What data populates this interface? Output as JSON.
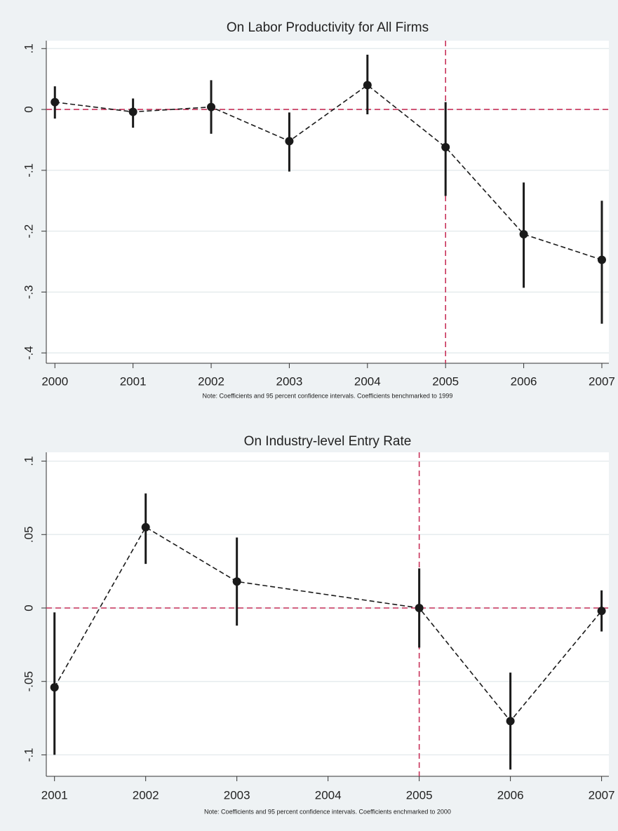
{
  "chart_data": [
    {
      "type": "line",
      "title": "On Labor Productivity for All Firms",
      "note": "Note: Coefficients and 95 percent confidence intervals. Coefficients benchmarked to 1999",
      "x": [
        2000,
        2001,
        2002,
        2003,
        2004,
        2005,
        2006,
        2007
      ],
      "values": [
        0.012,
        -0.004,
        0.004,
        -0.052,
        0.04,
        -0.062,
        -0.205,
        -0.247
      ],
      "ci_low": [
        -0.015,
        -0.03,
        -0.04,
        -0.102,
        -0.008,
        -0.142,
        -0.293,
        -0.352
      ],
      "ci_high": [
        0.038,
        0.018,
        0.048,
        -0.005,
        0.09,
        0.012,
        -0.12,
        -0.15
      ],
      "color": "#1a1a1a",
      "ref_color": "#c8325a",
      "ref_y": 0,
      "ref_x": 2005,
      "xlim": [
        1999.89,
        2007.09
      ],
      "xticks": [
        2000,
        2001,
        2002,
        2003,
        2004,
        2005,
        2006,
        2007
      ],
      "ylim": [
        -0.417,
        0.113
      ],
      "yticks": [
        {
          "value": 0.1,
          "label": ".1"
        },
        0,
        {
          "value": -0.1,
          "label": "-.1"
        },
        {
          "value": -0.2,
          "label": "-.2"
        },
        {
          "value": -0.3,
          "label": "-.3"
        },
        {
          "value": -0.4,
          "label": "-.4"
        }
      ],
      "grid": true
    },
    {
      "type": "line",
      "title": "On Industry-level Entry Rate",
      "note": "Note: Coefficients and 95 percent confidence intervals. Coefficients enchmarked to 2000",
      "x": [
        2001,
        2002,
        2003,
        2005,
        2006,
        2007
      ],
      "values": [
        -0.054,
        0.055,
        0.018,
        0.0,
        -0.077,
        -0.002
      ],
      "ci_low": [
        -0.1,
        0.03,
        -0.012,
        -0.027,
        -0.11,
        -0.016
      ],
      "ci_high": [
        -0.003,
        0.078,
        0.048,
        0.027,
        -0.044,
        0.012
      ],
      "color": "#1a1a1a",
      "ref_color": "#c8325a",
      "ref_y": 0,
      "ref_x": 2005,
      "xlim": [
        2000.91,
        2007.08
      ],
      "xticks": [
        2001,
        2002,
        2003,
        2004,
        2005,
        2006,
        2007
      ],
      "ylim": [
        -0.1146,
        0.106
      ],
      "yticks": [
        {
          "value": 0.1,
          "label": ".1"
        },
        {
          "value": 0.05,
          "label": ".05"
        },
        0,
        {
          "value": -0.05,
          "label": "-.05"
        },
        {
          "value": -0.1,
          "label": "-.1"
        }
      ],
      "grid": true
    }
  ]
}
